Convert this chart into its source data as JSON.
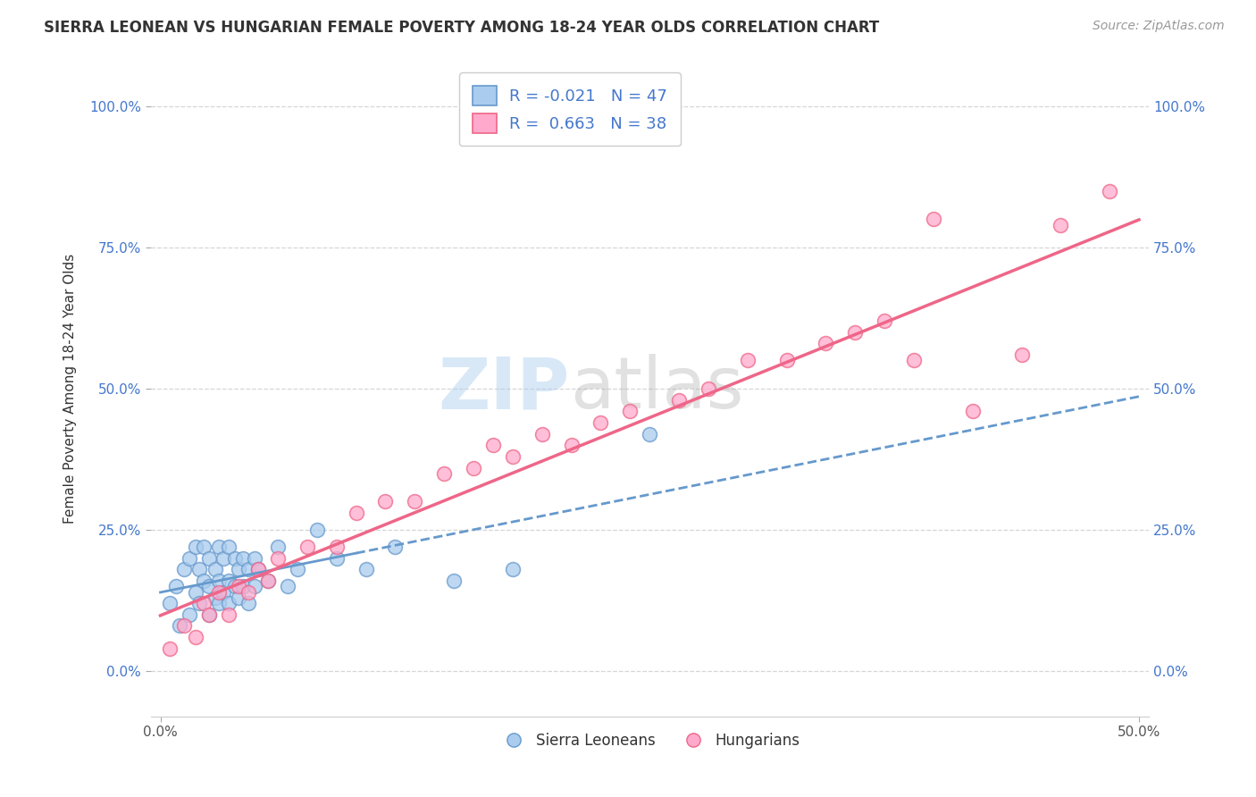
{
  "title": "SIERRA LEONEAN VS HUNGARIAN FEMALE POVERTY AMONG 18-24 YEAR OLDS CORRELATION CHART",
  "source": "Source: ZipAtlas.com",
  "ylabel_label": "Female Poverty Among 18-24 Year Olds",
  "xlim": [
    -0.005,
    0.505
  ],
  "ylim": [
    -0.08,
    1.08
  ],
  "x_ticks": [
    0.0,
    0.5
  ],
  "x_tick_labels": [
    "0.0%",
    "50.0%"
  ],
  "y_ticks": [
    0.0,
    0.25,
    0.5,
    0.75,
    1.0
  ],
  "y_tick_labels": [
    "0.0%",
    "25.0%",
    "50.0%",
    "75.0%",
    "100.0%"
  ],
  "background_color": "#ffffff",
  "grid_color": "#cccccc",
  "legend_R1": "-0.021",
  "legend_N1": "47",
  "legend_R2": "0.663",
  "legend_N2": "38",
  "sl_color": "#6699cc",
  "sl_color_fill": "#aaccee",
  "hu_color": "#ee6688",
  "hu_color_fill": "#ffaacc",
  "sl_scatter_x": [
    0.005,
    0.008,
    0.01,
    0.012,
    0.015,
    0.015,
    0.018,
    0.018,
    0.02,
    0.02,
    0.022,
    0.022,
    0.025,
    0.025,
    0.025,
    0.028,
    0.028,
    0.03,
    0.03,
    0.03,
    0.032,
    0.032,
    0.035,
    0.035,
    0.035,
    0.038,
    0.038,
    0.04,
    0.04,
    0.042,
    0.042,
    0.045,
    0.045,
    0.048,
    0.048,
    0.05,
    0.055,
    0.06,
    0.065,
    0.07,
    0.08,
    0.09,
    0.105,
    0.12,
    0.15,
    0.18,
    0.25
  ],
  "sl_scatter_y": [
    0.12,
    0.15,
    0.08,
    0.18,
    0.1,
    0.2,
    0.14,
    0.22,
    0.12,
    0.18,
    0.16,
    0.22,
    0.1,
    0.15,
    0.2,
    0.13,
    0.18,
    0.12,
    0.16,
    0.22,
    0.14,
    0.2,
    0.12,
    0.16,
    0.22,
    0.15,
    0.2,
    0.13,
    0.18,
    0.15,
    0.2,
    0.12,
    0.18,
    0.15,
    0.2,
    0.18,
    0.16,
    0.22,
    0.15,
    0.18,
    0.25,
    0.2,
    0.18,
    0.22,
    0.16,
    0.18,
    0.42
  ],
  "hu_scatter_x": [
    0.005,
    0.012,
    0.018,
    0.022,
    0.025,
    0.03,
    0.035,
    0.04,
    0.045,
    0.05,
    0.055,
    0.06,
    0.075,
    0.09,
    0.1,
    0.115,
    0.13,
    0.145,
    0.16,
    0.17,
    0.18,
    0.195,
    0.21,
    0.225,
    0.24,
    0.265,
    0.28,
    0.3,
    0.32,
    0.34,
    0.355,
    0.37,
    0.385,
    0.395,
    0.415,
    0.44,
    0.46,
    0.485
  ],
  "hu_scatter_y": [
    0.04,
    0.08,
    0.06,
    0.12,
    0.1,
    0.14,
    0.1,
    0.15,
    0.14,
    0.18,
    0.16,
    0.2,
    0.22,
    0.22,
    0.28,
    0.3,
    0.3,
    0.35,
    0.36,
    0.4,
    0.38,
    0.42,
    0.4,
    0.44,
    0.46,
    0.48,
    0.5,
    0.55,
    0.55,
    0.58,
    0.6,
    0.62,
    0.55,
    0.8,
    0.46,
    0.56,
    0.79,
    0.85
  ],
  "title_fontsize": 12,
  "label_fontsize": 11,
  "tick_fontsize": 11,
  "source_fontsize": 10
}
